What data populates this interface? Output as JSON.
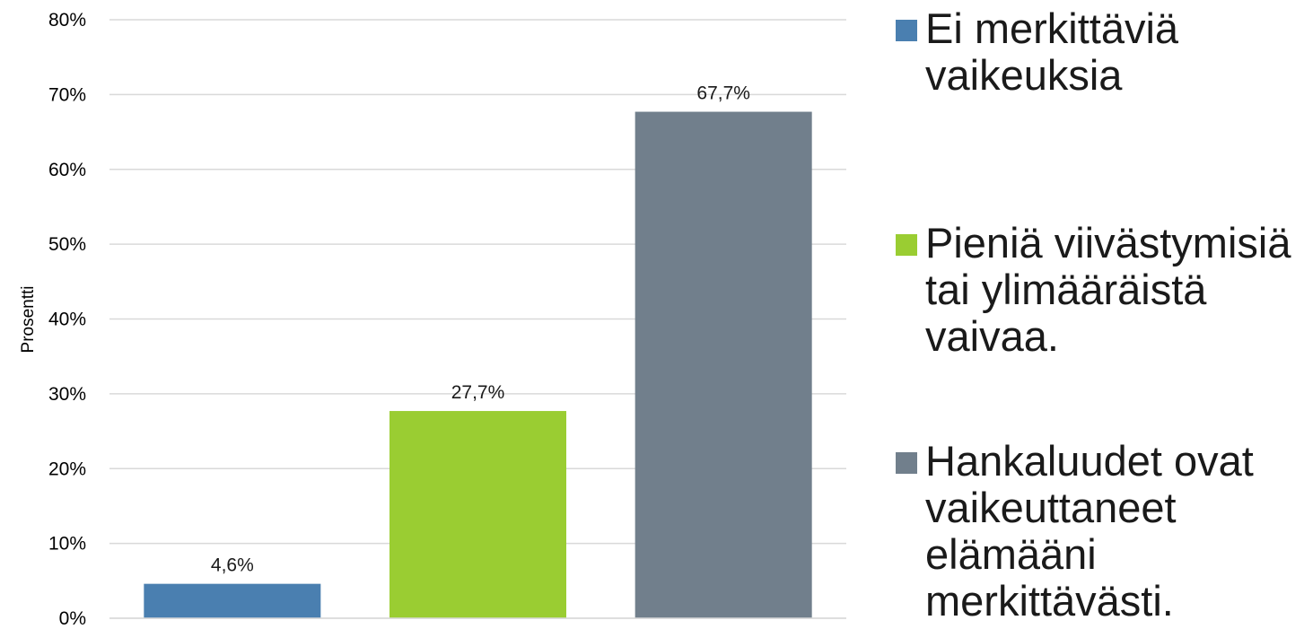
{
  "chart_data": {
    "type": "bar",
    "categories": [
      "Ei merkittäviä vaikeuksia",
      "Pieniä viivästymisiä tai ylimääräistä vaivaa.",
      "Hankaluudet ovat vaikeuttaneet elämääni merkittävästi."
    ],
    "values": [
      4.6,
      27.7,
      67.7
    ],
    "data_labels": [
      "4,6%",
      "27,7%",
      "67,7%"
    ],
    "colors": [
      "#4a7fb0",
      "#9acd32",
      "#717f8c"
    ],
    "ylabel": "Prosentti",
    "xlabel": "",
    "ylim": [
      0,
      80
    ],
    "yticks": [
      0,
      10,
      20,
      30,
      40,
      50,
      60,
      70,
      80
    ],
    "ytick_labels": [
      "0%",
      "10%",
      "20%",
      "30%",
      "40%",
      "50%",
      "60%",
      "70%",
      "80%"
    ],
    "grid": true,
    "gridline_color": "#d9d9d9",
    "legend_placement": "right",
    "legend": [
      {
        "label": "Ei merkittäviä vaikeuksia",
        "color": "#4a7fb0"
      },
      {
        "label": "Pieniä viivästymisiä tai ylimääräistä vaivaa.",
        "color": "#9acd32"
      },
      {
        "label": "Hankaluudet ovat vaikeuttaneet elämääni merkittävästi.",
        "color": "#717f8c"
      }
    ]
  }
}
